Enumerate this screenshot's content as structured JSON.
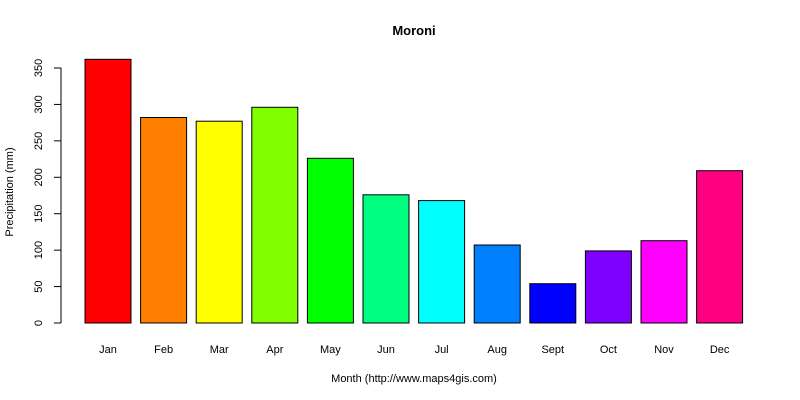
{
  "chart_data": {
    "type": "bar",
    "title": "Moroni",
    "xlabel": "Month (http://www.maps4gis.com)",
    "ylabel": "Precipitation (mm)",
    "ylim": [
      0,
      350
    ],
    "yticks": [
      0,
      50,
      100,
      150,
      200,
      250,
      300,
      350
    ],
    "categories": [
      "Jan",
      "Feb",
      "Mar",
      "Apr",
      "May",
      "Jun",
      "Jul",
      "Aug",
      "Sept",
      "Oct",
      "Nov",
      "Dec"
    ],
    "values": [
      362,
      282,
      277,
      296,
      226,
      176,
      168,
      107,
      54,
      99,
      113,
      209
    ],
    "colors": [
      "#ff0000",
      "#ff8000",
      "#ffff00",
      "#80ff00",
      "#00ff00",
      "#00ff80",
      "#00ffff",
      "#0080ff",
      "#0000ff",
      "#8000ff",
      "#ff00ff",
      "#ff0080"
    ],
    "grid": false,
    "legend": "none"
  }
}
